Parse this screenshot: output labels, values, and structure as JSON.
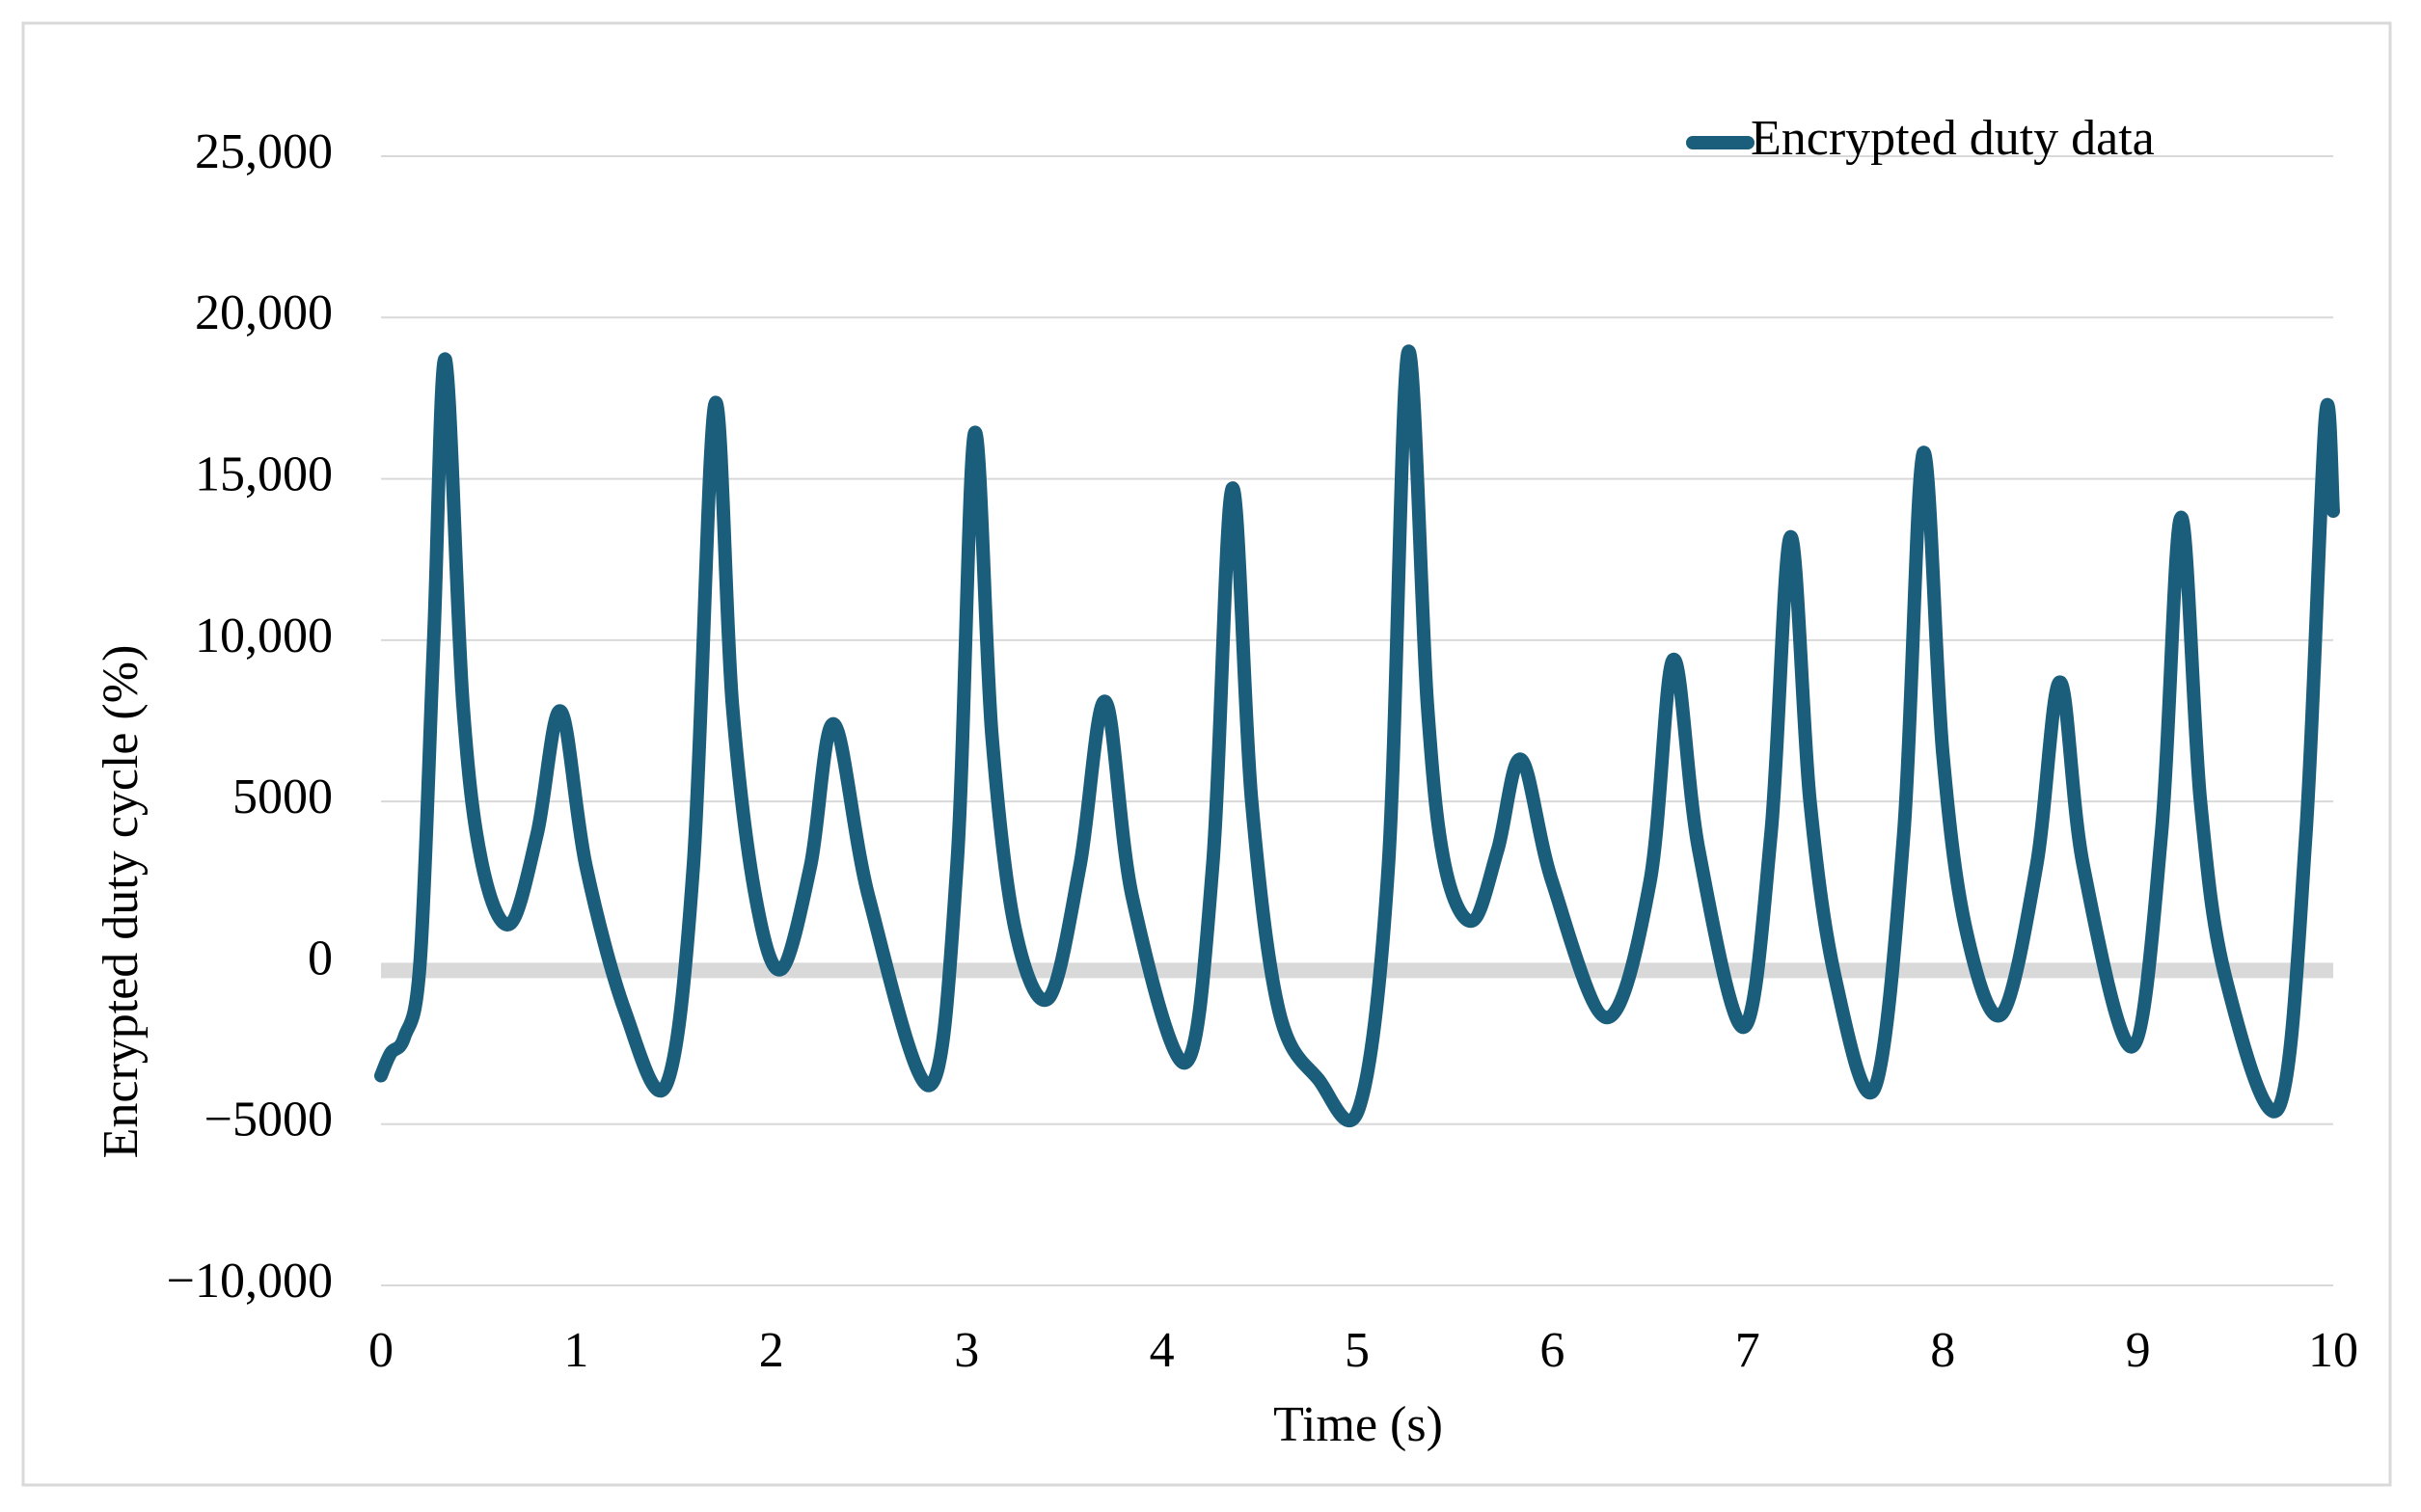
{
  "chart_data": {
    "type": "line",
    "x_label": "Time (s)",
    "y_label": "Encrypted duty cycle (%)",
    "x": [
      0,
      0.05,
      0.12,
      0.2,
      0.27,
      0.33,
      0.42,
      0.52,
      0.66,
      0.8,
      0.92,
      1.05,
      1.25,
      1.46,
      1.6,
      1.71,
      1.8,
      1.92,
      2.05,
      2.2,
      2.32,
      2.5,
      2.81,
      2.95,
      3.04,
      3.13,
      3.25,
      3.42,
      3.58,
      3.71,
      3.85,
      4.12,
      4.26,
      4.36,
      4.46,
      4.6,
      4.8,
      5.01,
      5.16,
      5.26,
      5.36,
      5.45,
      5.59,
      5.72,
      5.84,
      6.0,
      6.28,
      6.5,
      6.62,
      6.75,
      6.98,
      7.12,
      7.22,
      7.32,
      7.45,
      7.65,
      7.8,
      7.9,
      8.0,
      8.12,
      8.3,
      8.48,
      8.6,
      8.72,
      8.97,
      9.12,
      9.22,
      9.32,
      9.45,
      9.72,
      9.86,
      9.96,
      10
    ],
    "series": [
      {
        "name": "Encrypted duty data",
        "color": "#1b5e7b",
        "values": [
          -3500,
          -2800,
          -2300,
          0,
          10000,
          18700,
          8000,
          3000,
          1200,
          4000,
          7800,
          3000,
          -1500,
          -3800,
          3000,
          17300,
          8000,
          2000,
          -200,
          3000,
          7400,
          2000,
          -3800,
          3000,
          16400,
          7000,
          1000,
          -1100,
          3000,
          8100,
          2000,
          -3100,
          3000,
          14700,
          5000,
          -1500,
          -3600,
          -4500,
          3000,
          18900,
          8000,
          3000,
          1300,
          3500,
          6300,
          2500,
          -1700,
          2500,
          9400,
          3500,
          -2000,
          4000,
          13200,
          5000,
          -500,
          -3900,
          4000,
          15800,
          6500,
          1000,
          -1600,
          3000,
          8700,
          3000,
          -2600,
          4000,
          13800,
          5000,
          -500,
          -4500,
          4000,
          16900,
          14000
        ]
      }
    ],
    "xlim": [
      0,
      10
    ],
    "xticks": [
      0,
      1,
      2,
      3,
      4,
      5,
      6,
      7,
      8,
      9,
      10
    ],
    "ylim": [
      -10000,
      25000
    ],
    "yticks": [
      {
        "value": -10000,
        "label": "−10,000"
      },
      {
        "value": -5000,
        "label": "−5000"
      },
      0,
      5000,
      {
        "value": 10000,
        "label": "10,000"
      },
      {
        "value": 15000,
        "label": "15,000"
      },
      {
        "value": 20000,
        "label": "20,000"
      },
      {
        "value": 25000,
        "label": "25,000"
      }
    ],
    "grid": true,
    "legend": "upper-right"
  }
}
